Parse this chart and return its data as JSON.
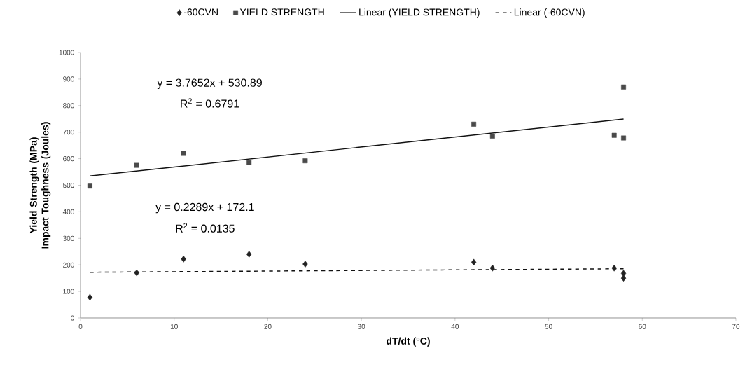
{
  "chart_data": {
    "type": "scatter",
    "xlabel": "dT/dt (°C)",
    "ylabel": "Yield Strength (MPa) Impact Toughness (Joules)",
    "xlim": [
      0,
      70
    ],
    "xticks": [
      0,
      10,
      20,
      30,
      40,
      50,
      60,
      70
    ],
    "ylim": [
      0,
      1000
    ],
    "yticks": [
      0,
      100,
      200,
      300,
      400,
      500,
      600,
      700,
      800,
      900,
      1000
    ],
    "grid": false,
    "legend": "top",
    "annotations": [
      "y = 3.7652x + 530.89",
      "R$^{2}$ = 0.6791",
      "y = 0.2289x + 172.1",
      "R$^{2}$ = 0.0135"
    ],
    "series": [
      {
        "name": "-60CVN",
        "marker": "diamond",
        "color": "#222222",
        "x": [
          1,
          6,
          11,
          18,
          24,
          42,
          44,
          57,
          58,
          58
        ],
        "values": [
          78,
          170,
          222,
          240,
          203,
          210,
          188,
          188,
          168,
          150
        ]
      },
      {
        "name": "YIELD STRENGTH",
        "marker": "square",
        "color": "#4a4a4a",
        "x": [
          1,
          6,
          11,
          18,
          24,
          42,
          44,
          57,
          58,
          58
        ],
        "values": [
          497,
          575,
          620,
          585,
          592,
          730,
          685,
          688,
          870,
          678
        ]
      },
      {
        "name": "Linear (YIELD STRENGTH)",
        "type": "line",
        "line_style": "solid",
        "marker": "none",
        "color": "#111111",
        "x": [
          1,
          58
        ],
        "values": [
          534.7,
          749.3
        ]
      },
      {
        "name": "Linear (-60CVN)",
        "type": "line",
        "line_style": "dashed",
        "marker": "none",
        "color": "#111111",
        "x": [
          1,
          58
        ],
        "values": [
          172.3,
          185.4
        ]
      }
    ]
  }
}
